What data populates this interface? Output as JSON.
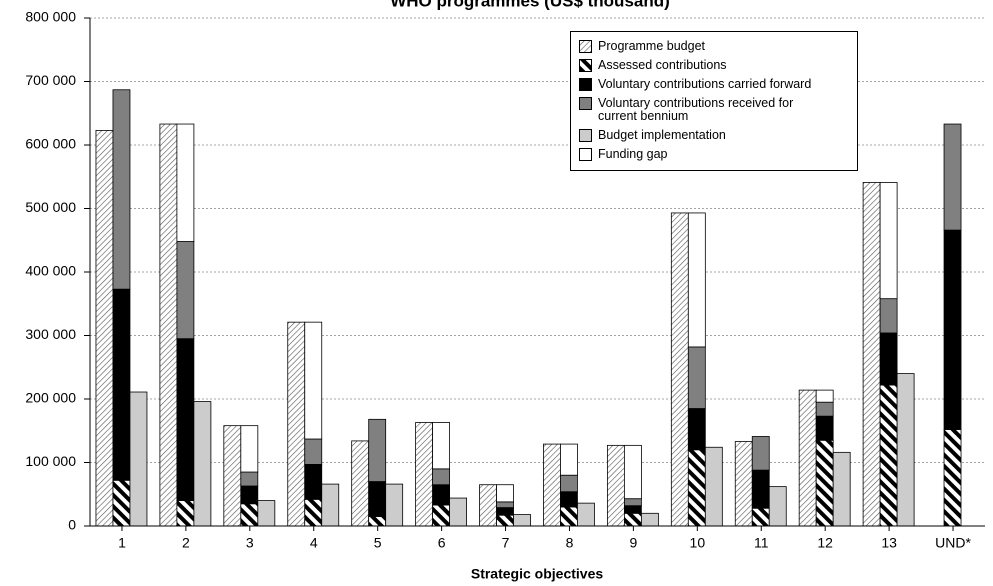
{
  "chart_data": {
    "type": "bar",
    "title": "WHO programmes (US$ thousand)",
    "x_label": "Strategic objectives",
    "categories": [
      "1",
      "2",
      "3",
      "4",
      "5",
      "6",
      "7",
      "8",
      "9",
      "10",
      "11",
      "12",
      "13",
      "UND*"
    ],
    "ylim": [
      0,
      800000
    ],
    "yticks": [
      0,
      {
        "value": 100000,
        "label": "100 000"
      },
      {
        "value": 200000,
        "label": "200 000"
      },
      {
        "value": 300000,
        "label": "300 000"
      },
      {
        "value": 400000,
        "label": "400 000"
      },
      {
        "value": 500000,
        "label": "500 000"
      },
      {
        "value": 600000,
        "label": "600 000"
      },
      {
        "value": 700000,
        "label": "700 000"
      },
      {
        "value": 800000,
        "label": "800 000"
      }
    ],
    "grid": true,
    "legend": "top-right",
    "series": [
      {
        "name": "Programme budget",
        "color": "#ffffff",
        "pattern": "hatch",
        "position": 0,
        "values": [
          623000,
          633000,
          158000,
          321000,
          134000,
          163000,
          65000,
          129000,
          127000,
          493000,
          133000,
          214000,
          541000,
          null
        ]
      },
      {
        "name": "Assessed contributions",
        "color": "#000000",
        "pattern": "stripes",
        "position": 1,
        "values": [
          72000,
          40000,
          35000,
          42000,
          15000,
          33000,
          17000,
          30000,
          20000,
          120000,
          28000,
          135000,
          222000,
          152000
        ]
      },
      {
        "name": "Voluntary contributions carried forward",
        "color": "#000000",
        "position": 1,
        "values": [
          301000,
          255000,
          28000,
          55000,
          55000,
          32000,
          12000,
          24000,
          12000,
          65000,
          60000,
          38000,
          82000,
          314000
        ]
      },
      {
        "name": "Voluntary contributions received for current bennium",
        "color": "#808080",
        "position": 1,
        "values": [
          314000,
          153000,
          22000,
          40000,
          98000,
          25000,
          9000,
          26000,
          11000,
          97000,
          53000,
          22000,
          54000,
          167000
        ]
      },
      {
        "name": "Budget implementation",
        "color": "#cccccc",
        "position": 2,
        "values": [
          211000,
          196000,
          40000,
          66000,
          66000,
          44000,
          18000,
          36000,
          20000,
          124000,
          62000,
          116000,
          240000,
          null
        ]
      },
      {
        "name": "Funding gap",
        "color": "#ffffff",
        "position": 1,
        "values": [
          0,
          185000,
          73000,
          184000,
          0,
          73000,
          27000,
          49000,
          84000,
          211000,
          0,
          19000,
          183000,
          0
        ]
      }
    ]
  }
}
